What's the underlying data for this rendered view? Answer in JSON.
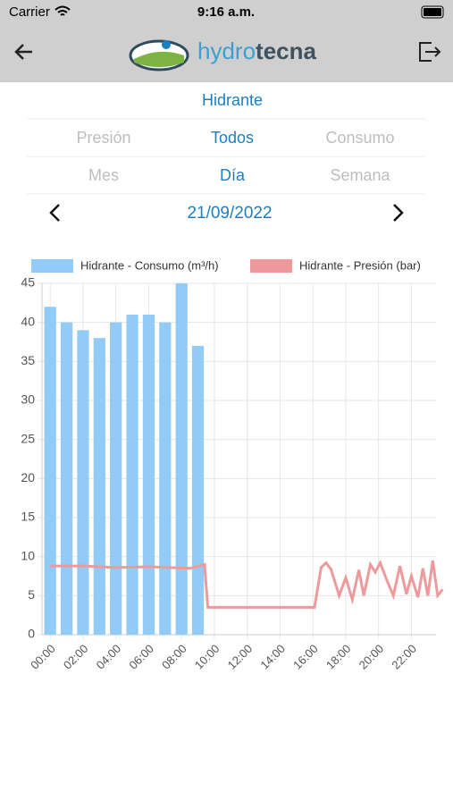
{
  "status_bar": {
    "carrier": "Carrier",
    "time": "9:16 a.m."
  },
  "header": {
    "logo_part1": "hydro",
    "logo_part2": "tecna"
  },
  "title": "Hidrante",
  "filters": {
    "type": [
      "Presión",
      "Todos",
      "Consumo"
    ],
    "period": [
      "Mes",
      "Día",
      "Semana"
    ]
  },
  "date": "21/09/2022",
  "chart_data": {
    "type": "bar",
    "categories": [
      "00:00",
      null,
      "02:00",
      null,
      "04:00",
      null,
      "06:00",
      null,
      "08:00",
      null,
      "10:00",
      null,
      "12:00",
      null,
      "14:00",
      null,
      "16:00",
      null,
      "18:00",
      null,
      "20:00",
      null,
      "22:00",
      null
    ],
    "series": [
      {
        "name": "Hidrante - Consumo (m³/h)",
        "color": "#92cbf6",
        "type": "bar",
        "values": [
          42,
          40,
          39,
          38,
          40,
          41,
          41,
          40,
          45,
          37,
          null,
          null,
          null,
          null,
          null,
          null,
          null,
          null,
          null,
          null,
          null,
          null,
          null,
          null
        ]
      },
      {
        "name": "Hidrante - Presión (bar)",
        "color": "#ee9a9d",
        "type": "line",
        "x": [
          0,
          2,
          4,
          6,
          8.5,
          9.4,
          9.6,
          13,
          16.1,
          16.5,
          16.8,
          17.1,
          17.6,
          18.0,
          18.4,
          18.8,
          19.1,
          19.5,
          19.8,
          20.1,
          20.5,
          20.9,
          21.3,
          21.7,
          22.0,
          22.4,
          22.7,
          23.0,
          23.3,
          23.6,
          23.9
        ],
        "values": [
          8.8,
          8.8,
          8.6,
          8.7,
          8.5,
          9.0,
          3.5,
          3.5,
          3.5,
          8.6,
          9.2,
          8.4,
          5.0,
          7.3,
          4.5,
          8.3,
          5.0,
          9.0,
          8.0,
          9.2,
          7.0,
          5.0,
          8.8,
          5.2,
          7.5,
          4.8,
          8.5,
          5.0,
          9.5,
          5.0,
          5.8
        ]
      }
    ],
    "ylim": [
      0,
      45
    ],
    "yticks": [
      0,
      5,
      10,
      15,
      20,
      25,
      30,
      35,
      40,
      45
    ],
    "grid": true,
    "legend": "top"
  }
}
